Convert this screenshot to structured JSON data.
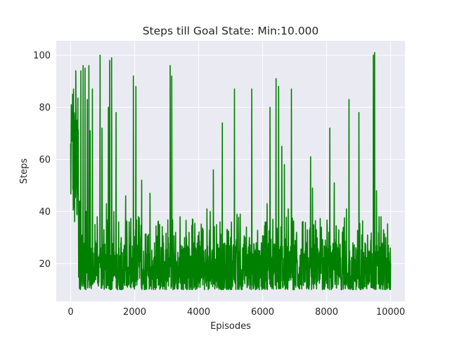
{
  "chart_data": {
    "type": "line",
    "title": "Steps till Goal State: Min:10.000",
    "xlabel": "Episodes",
    "ylabel": "Steps",
    "xlim": [
      -450,
      10450
    ],
    "ylim": [
      5.5,
      105.5
    ],
    "xticks": [
      0,
      2000,
      4000,
      6000,
      8000,
      10000
    ],
    "xtick_labels": [
      "0",
      "2000",
      "4000",
      "6000",
      "8000",
      "10000"
    ],
    "yticks": [
      20,
      40,
      60,
      80,
      100
    ],
    "ytick_labels": [
      "20",
      "40",
      "60",
      "80",
      "100"
    ],
    "grid": true,
    "legend": "none",
    "series": [
      {
        "color": "#008000",
        "x_start": 0,
        "x_end": 10000,
        "n_points": 10000,
        "min": 10,
        "max": 101,
        "typical_range": [
          10,
          28
        ],
        "spikes": [
          {
            "x": 20,
            "y": 81
          },
          {
            "x": 40,
            "y": 67
          },
          {
            "x": 60,
            "y": 85
          },
          {
            "x": 90,
            "y": 87
          },
          {
            "x": 130,
            "y": 75
          },
          {
            "x": 160,
            "y": 94
          },
          {
            "x": 230,
            "y": 47
          },
          {
            "x": 280,
            "y": 44
          },
          {
            "x": 320,
            "y": 94
          },
          {
            "x": 390,
            "y": 96
          },
          {
            "x": 450,
            "y": 95
          },
          {
            "x": 480,
            "y": 40
          },
          {
            "x": 520,
            "y": 83
          },
          {
            "x": 570,
            "y": 96
          },
          {
            "x": 610,
            "y": 71
          },
          {
            "x": 680,
            "y": 87
          },
          {
            "x": 760,
            "y": 35
          },
          {
            "x": 830,
            "y": 38
          },
          {
            "x": 920,
            "y": 100
          },
          {
            "x": 980,
            "y": 72
          },
          {
            "x": 1040,
            "y": 33
          },
          {
            "x": 1120,
            "y": 43
          },
          {
            "x": 1180,
            "y": 80
          },
          {
            "x": 1220,
            "y": 98
          },
          {
            "x": 1280,
            "y": 99
          },
          {
            "x": 1350,
            "y": 40
          },
          {
            "x": 1420,
            "y": 78
          },
          {
            "x": 1500,
            "y": 36
          },
          {
            "x": 1580,
            "y": 30
          },
          {
            "x": 1720,
            "y": 46
          },
          {
            "x": 1830,
            "y": 36
          },
          {
            "x": 1960,
            "y": 92
          },
          {
            "x": 2040,
            "y": 88
          },
          {
            "x": 2120,
            "y": 38
          },
          {
            "x": 2220,
            "y": 52
          },
          {
            "x": 2340,
            "y": 28
          },
          {
            "x": 2480,
            "y": 47
          },
          {
            "x": 2620,
            "y": 28
          },
          {
            "x": 2780,
            "y": 35
          },
          {
            "x": 2900,
            "y": 28
          },
          {
            "x": 3050,
            "y": 30
          },
          {
            "x": 3110,
            "y": 96
          },
          {
            "x": 3160,
            "y": 92
          },
          {
            "x": 3280,
            "y": 32
          },
          {
            "x": 3420,
            "y": 38
          },
          {
            "x": 3560,
            "y": 30
          },
          {
            "x": 3700,
            "y": 32
          },
          {
            "x": 3860,
            "y": 28
          },
          {
            "x": 4000,
            "y": 30
          },
          {
            "x": 4140,
            "y": 33
          },
          {
            "x": 4260,
            "y": 41
          },
          {
            "x": 4360,
            "y": 40
          },
          {
            "x": 4460,
            "y": 56
          },
          {
            "x": 4560,
            "y": 35
          },
          {
            "x": 4740,
            "y": 74
          },
          {
            "x": 4900,
            "y": 33
          },
          {
            "x": 5000,
            "y": 30
          },
          {
            "x": 5120,
            "y": 87
          },
          {
            "x": 5200,
            "y": 39
          },
          {
            "x": 5300,
            "y": 39
          },
          {
            "x": 5450,
            "y": 30
          },
          {
            "x": 5580,
            "y": 28
          },
          {
            "x": 5660,
            "y": 87
          },
          {
            "x": 5800,
            "y": 28
          },
          {
            "x": 5960,
            "y": 28
          },
          {
            "x": 6080,
            "y": 36
          },
          {
            "x": 6140,
            "y": 43
          },
          {
            "x": 6230,
            "y": 80
          },
          {
            "x": 6320,
            "y": 37
          },
          {
            "x": 6420,
            "y": 91
          },
          {
            "x": 6500,
            "y": 88
          },
          {
            "x": 6600,
            "y": 65
          },
          {
            "x": 6680,
            "y": 58
          },
          {
            "x": 6800,
            "y": 41
          },
          {
            "x": 6900,
            "y": 87
          },
          {
            "x": 7060,
            "y": 32
          },
          {
            "x": 7240,
            "y": 36
          },
          {
            "x": 7400,
            "y": 33
          },
          {
            "x": 7500,
            "y": 61
          },
          {
            "x": 7560,
            "y": 49
          },
          {
            "x": 7680,
            "y": 33
          },
          {
            "x": 7830,
            "y": 34
          },
          {
            "x": 7960,
            "y": 29
          },
          {
            "x": 8100,
            "y": 72
          },
          {
            "x": 8240,
            "y": 51
          },
          {
            "x": 8380,
            "y": 33
          },
          {
            "x": 8500,
            "y": 30
          },
          {
            "x": 8620,
            "y": 41
          },
          {
            "x": 8700,
            "y": 83
          },
          {
            "x": 8820,
            "y": 28
          },
          {
            "x": 9010,
            "y": 78
          },
          {
            "x": 9100,
            "y": 31
          },
          {
            "x": 9200,
            "y": 28
          },
          {
            "x": 9280,
            "y": 31
          },
          {
            "x": 9380,
            "y": 29
          },
          {
            "x": 9460,
            "y": 100
          },
          {
            "x": 9500,
            "y": 101
          },
          {
            "x": 9560,
            "y": 48
          },
          {
            "x": 9640,
            "y": 38
          },
          {
            "x": 9700,
            "y": 38
          },
          {
            "x": 9780,
            "y": 33
          },
          {
            "x": 9850,
            "y": 30
          },
          {
            "x": 9930,
            "y": 27
          },
          {
            "x": 9990,
            "y": 26
          }
        ]
      }
    ]
  }
}
